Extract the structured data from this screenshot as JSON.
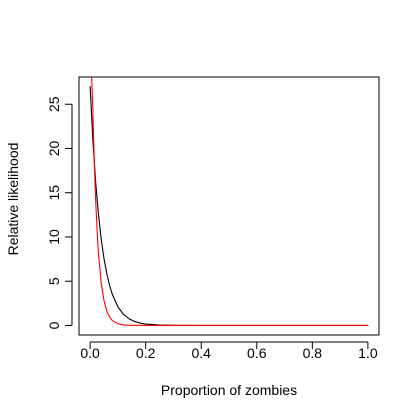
{
  "chart_data": {
    "type": "line",
    "title": "",
    "xlabel": "Proportion of zombies",
    "ylabel": "Relative likelihood",
    "xlim": [
      -0.04,
      1.04
    ],
    "ylim": [
      -1.08,
      28.08
    ],
    "xticks": [
      0.0,
      0.2,
      0.4,
      0.6,
      0.8,
      1.0
    ],
    "xtick_labels": [
      "0.0",
      "0.2",
      "0.4",
      "0.6",
      "0.8",
      "1.0"
    ],
    "yticks": [
      0,
      5,
      10,
      15,
      20,
      25
    ],
    "ytick_labels": [
      "0",
      "5",
      "10",
      "15",
      "20",
      "25"
    ],
    "grid": false,
    "legend": null,
    "series": [
      {
        "name": "black curve",
        "color": "#000000",
        "x": [
          0.0,
          0.01,
          0.02,
          0.03,
          0.04,
          0.05,
          0.06,
          0.07,
          0.08,
          0.1,
          0.12,
          0.14,
          0.16,
          0.18,
          0.2,
          0.25,
          0.3,
          0.4,
          0.5,
          0.6,
          0.7,
          0.8,
          0.9,
          1.0
        ],
        "values": [
          27.0,
          20.9,
          16.2,
          12.6,
          9.75,
          7.55,
          5.85,
          4.53,
          3.51,
          2.11,
          1.26,
          0.76,
          0.45,
          0.27,
          0.16,
          0.04,
          0.01,
          0.0,
          0.0,
          0.0,
          0.0,
          0.0,
          0.0,
          0.0
        ]
      },
      {
        "name": "red curve",
        "color": "#ff0000",
        "x": [
          0.005,
          0.01,
          0.015,
          0.02,
          0.025,
          0.03,
          0.04,
          0.05,
          0.06,
          0.07,
          0.08,
          0.1,
          0.12,
          0.14,
          0.16,
          0.2,
          0.25,
          0.3,
          0.4,
          0.5,
          0.6,
          0.7,
          0.8,
          0.9,
          1.0
        ],
        "values": [
          28.5,
          24.2,
          18.5,
          14.1,
          10.8,
          8.2,
          4.8,
          2.8,
          1.6,
          0.95,
          0.55,
          0.19,
          0.06,
          0.02,
          0.01,
          0.0,
          0.0,
          0.0,
          0.0,
          0.0,
          0.0,
          0.0,
          0.0,
          0.0,
          0.0
        ]
      }
    ]
  }
}
